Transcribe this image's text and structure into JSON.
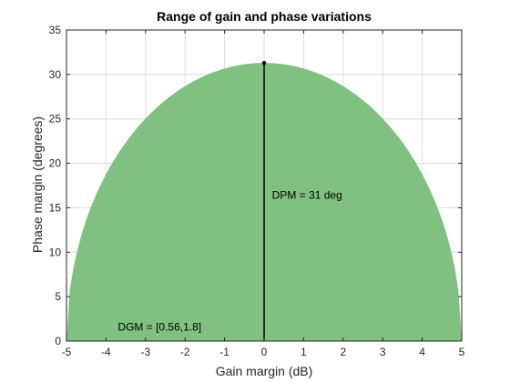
{
  "chart_data": {
    "type": "area",
    "title": "Range of gain and phase variations",
    "xlabel": "Gain margin (dB)",
    "ylabel": "Phase margin (degrees)",
    "xlim": [
      -5,
      5
    ],
    "ylim": [
      0,
      35
    ],
    "xticks": [
      -5,
      -4,
      -3,
      -2,
      -1,
      0,
      1,
      2,
      3,
      4,
      5
    ],
    "yticks": [
      0,
      5,
      10,
      15,
      20,
      25,
      30,
      35
    ],
    "grid": true,
    "region": {
      "shape": "half-ellipse",
      "x_extent": [
        -5,
        5
      ],
      "peak": {
        "x": 0,
        "y": 31.3
      },
      "color": "#80c080"
    },
    "peak_line": {
      "x": 0,
      "y_from": 0,
      "y_to": 31.3,
      "color": "#000000"
    },
    "annotations": [
      {
        "text": "DPM = 31 deg",
        "x": 0.2,
        "y": 16
      },
      {
        "text": "DGM = [0.56,1.8]",
        "x": -3.7,
        "y": 1.2
      }
    ]
  }
}
